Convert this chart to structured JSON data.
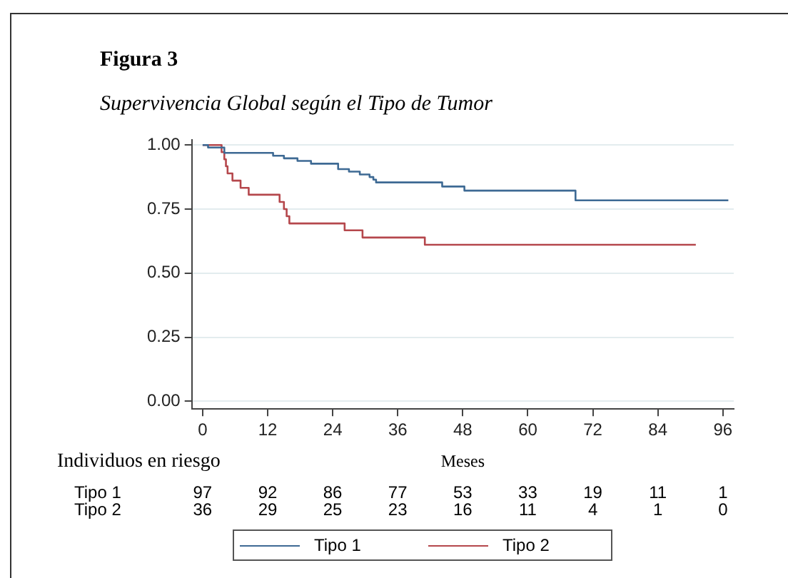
{
  "chart_data": {
    "type": "step",
    "title": "Figura 3",
    "subtitle": "Supervivencia Global según el Tipo de Tumor",
    "xlabel": "Meses",
    "xlim": [
      -2,
      98
    ],
    "xticks": [
      0,
      12,
      24,
      36,
      48,
      60,
      72,
      84,
      96
    ],
    "ylim": [
      -0.03,
      1.02
    ],
    "yticks": [
      {
        "value": 0,
        "label": "0.00"
      },
      {
        "value": 0.25,
        "label": "0.25"
      },
      {
        "value": 0.5,
        "label": "0.50"
      },
      {
        "value": 0.75,
        "label": "0.75"
      },
      {
        "value": 1,
        "label": "1.00"
      }
    ],
    "grid": "y",
    "legend": "bottom",
    "marker": "none",
    "line_style": "solid",
    "series": [
      {
        "name": "Tipo 1",
        "color": "#3e6a94",
        "x": [
          0,
          1,
          4,
          13,
          15,
          17.5,
          20,
          25,
          27,
          29,
          30.8,
          31.5,
          32,
          44.2,
          48.3,
          68.8,
          97
        ],
        "values": [
          1,
          0.99,
          0.969,
          0.958,
          0.948,
          0.938,
          0.927,
          0.906,
          0.896,
          0.885,
          0.875,
          0.865,
          0.854,
          0.838,
          0.822,
          0.784,
          0.784
        ]
      },
      {
        "name": "Tipo 2",
        "color": "#b5474c",
        "x": [
          0,
          3.5,
          4,
          4.3,
          4.6,
          5.5,
          7,
          8.5,
          14.2,
          15,
          15.5,
          16,
          26.2,
          29.5,
          41,
          91
        ],
        "values": [
          1,
          0.972,
          0.944,
          0.917,
          0.889,
          0.861,
          0.833,
          0.806,
          0.778,
          0.75,
          0.722,
          0.694,
          0.667,
          0.639,
          0.611,
          0.611
        ]
      }
    ],
    "annotations": [
      "Individuos en riesgo",
      "Tipo 1",
      "97",
      "92",
      "86",
      "77",
      "53",
      "33",
      "19",
      "11",
      "1",
      "Tipo 2",
      "36",
      "29",
      "25",
      "23",
      "16",
      "11",
      "4",
      "1",
      "0"
    ]
  }
}
